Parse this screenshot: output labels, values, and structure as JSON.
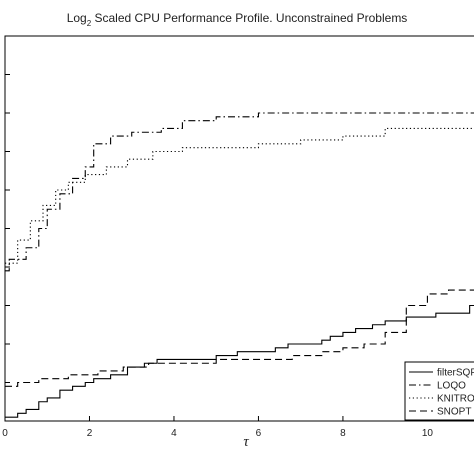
{
  "chart_data": {
    "type": "line",
    "title_main": "Log",
    "title_sub": "2",
    "title_rest": " Scaled CPU Performance Profile. Unconstrained Problems",
    "xlabel": "τ",
    "ylabel": "",
    "xlim": [
      0,
      11.6
    ],
    "ylim": [
      0,
      1
    ],
    "xticks": [
      0,
      2,
      4,
      6,
      8,
      10
    ],
    "xtick_labels": [
      "0",
      "2",
      "4",
      "6",
      "8",
      "10"
    ],
    "yticks": [
      0,
      0.1,
      0.2,
      0.3,
      0.4,
      0.5,
      0.6,
      0.7,
      0.8,
      0.9,
      1.0
    ],
    "grid": false,
    "legend_position": "bottom-right",
    "series": [
      {
        "name": "filterSQP",
        "dash": "solid",
        "step": [
          [
            0,
            0.01
          ],
          [
            0.3,
            0.02
          ],
          [
            0.5,
            0.03
          ],
          [
            0.8,
            0.05
          ],
          [
            1.0,
            0.06
          ],
          [
            1.3,
            0.08
          ],
          [
            1.6,
            0.09
          ],
          [
            1.9,
            0.1
          ],
          [
            2.1,
            0.11
          ],
          [
            2.5,
            0.12
          ],
          [
            2.9,
            0.14
          ],
          [
            3.3,
            0.15
          ],
          [
            3.6,
            0.16
          ],
          [
            4.0,
            0.16
          ],
          [
            4.5,
            0.16
          ],
          [
            5.0,
            0.17
          ],
          [
            5.5,
            0.18
          ],
          [
            6.0,
            0.18
          ],
          [
            6.4,
            0.19
          ],
          [
            6.7,
            0.2
          ],
          [
            7.2,
            0.2
          ],
          [
            7.5,
            0.21
          ],
          [
            7.7,
            0.22
          ],
          [
            8.0,
            0.23
          ],
          [
            8.3,
            0.24
          ],
          [
            8.7,
            0.25
          ],
          [
            9.0,
            0.26
          ],
          [
            9.5,
            0.27
          ],
          [
            10.2,
            0.28
          ],
          [
            11.0,
            0.3
          ],
          [
            11.6,
            0.3
          ]
        ]
      },
      {
        "name": "LOQO",
        "dash": "dashdot",
        "step": [
          [
            0,
            0.39
          ],
          [
            0.1,
            0.42
          ],
          [
            0.5,
            0.45
          ],
          [
            0.8,
            0.5
          ],
          [
            1.0,
            0.55
          ],
          [
            1.3,
            0.59
          ],
          [
            1.6,
            0.63
          ],
          [
            1.9,
            0.66
          ],
          [
            2.1,
            0.72
          ],
          [
            2.5,
            0.74
          ],
          [
            3.0,
            0.75
          ],
          [
            3.7,
            0.76
          ],
          [
            4.2,
            0.78
          ],
          [
            5.0,
            0.79
          ],
          [
            6.0,
            0.8
          ],
          [
            7.0,
            0.8
          ],
          [
            8.0,
            0.8
          ],
          [
            9.0,
            0.8
          ],
          [
            11.6,
            0.8
          ]
        ]
      },
      {
        "name": "KNITRO",
        "dash": "dotted",
        "step": [
          [
            0,
            0.41
          ],
          [
            0.3,
            0.47
          ],
          [
            0.6,
            0.52
          ],
          [
            0.9,
            0.56
          ],
          [
            1.2,
            0.6
          ],
          [
            1.5,
            0.62
          ],
          [
            1.9,
            0.64
          ],
          [
            2.4,
            0.66
          ],
          [
            2.9,
            0.68
          ],
          [
            3.5,
            0.7
          ],
          [
            4.2,
            0.71
          ],
          [
            5.2,
            0.71
          ],
          [
            6.0,
            0.72
          ],
          [
            7.0,
            0.73
          ],
          [
            8.0,
            0.74
          ],
          [
            9.0,
            0.76
          ],
          [
            11.6,
            0.76
          ]
        ]
      },
      {
        "name": "SNOPT",
        "dash": "dashed",
        "step": [
          [
            0,
            0.09
          ],
          [
            0.3,
            0.1
          ],
          [
            0.8,
            0.11
          ],
          [
            1.5,
            0.12
          ],
          [
            2.2,
            0.13
          ],
          [
            2.8,
            0.14
          ],
          [
            3.4,
            0.15
          ],
          [
            4.3,
            0.15
          ],
          [
            5.0,
            0.16
          ],
          [
            6.0,
            0.16
          ],
          [
            6.8,
            0.17
          ],
          [
            7.5,
            0.18
          ],
          [
            8.0,
            0.19
          ],
          [
            8.5,
            0.2
          ],
          [
            9.0,
            0.23
          ],
          [
            9.5,
            0.3
          ],
          [
            10.0,
            0.33
          ],
          [
            10.5,
            0.34
          ],
          [
            11.6,
            0.34
          ]
        ]
      }
    ]
  }
}
